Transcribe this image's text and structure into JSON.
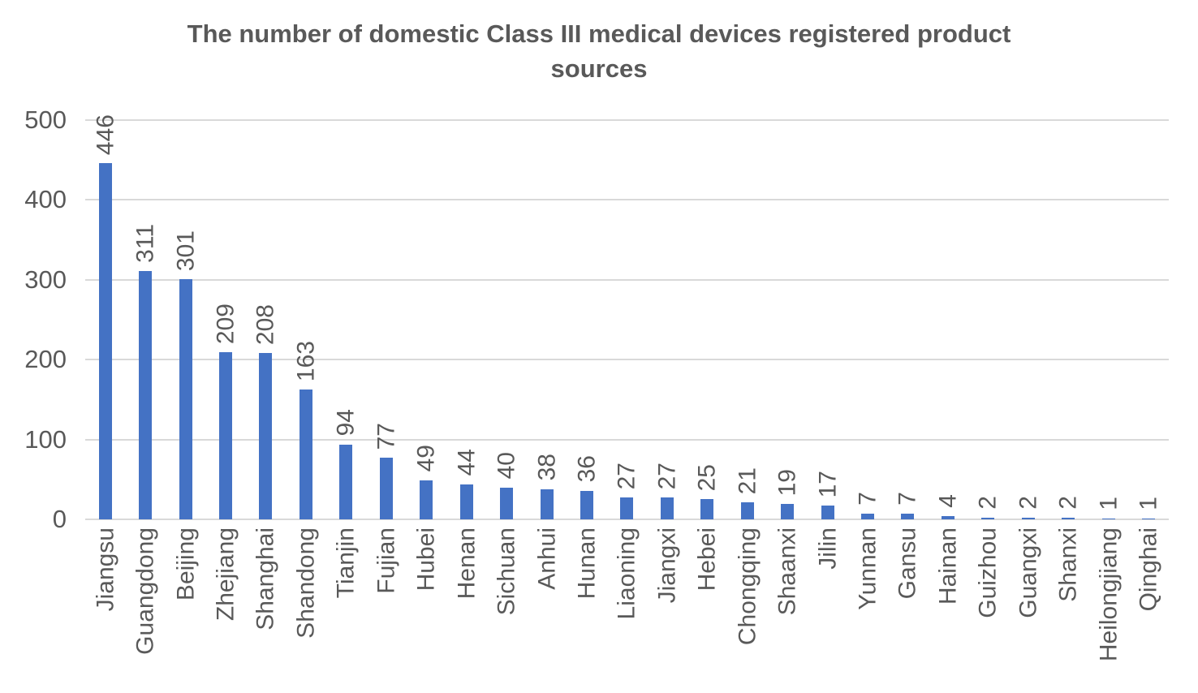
{
  "chart_data": {
    "type": "bar",
    "title": "The number of domestic Class III medical devices registered product sources",
    "categories": [
      "Jiangsu",
      "Guangdong",
      "Beijing",
      "Zhejiang",
      "Shanghai",
      "Shandong",
      "Tianjin",
      "Fujian",
      "Hubei",
      "Henan",
      "Sichuan",
      "Anhui",
      "Hunan",
      "Liaoning",
      "Jiangxi",
      "Hebei",
      "Chongqing",
      "Shaanxi",
      "Jilin",
      "Yunnan",
      "Gansu",
      "Hainan",
      "Guizhou",
      "Guangxi",
      "Shanxi",
      "Heilongjiang",
      "Qinghai"
    ],
    "values": [
      446,
      311,
      301,
      209,
      208,
      163,
      94,
      77,
      49,
      44,
      40,
      38,
      36,
      27,
      27,
      25,
      21,
      19,
      17,
      7,
      7,
      4,
      2,
      2,
      2,
      1,
      1
    ],
    "xlabel": "",
    "ylabel": "",
    "ylim": [
      0,
      500
    ],
    "yticks": [
      0,
      100,
      200,
      300,
      400,
      500
    ],
    "grid": "horizontal",
    "legend_position": "none",
    "data_label_rotation": "vertical-bottom-to-top",
    "x_label_rotation": "vertical-bottom-to-top",
    "colors": {
      "bar": "#4472C4",
      "gridline": "#D9D9D9",
      "text": "#595959",
      "background": "#FFFFFF"
    }
  }
}
